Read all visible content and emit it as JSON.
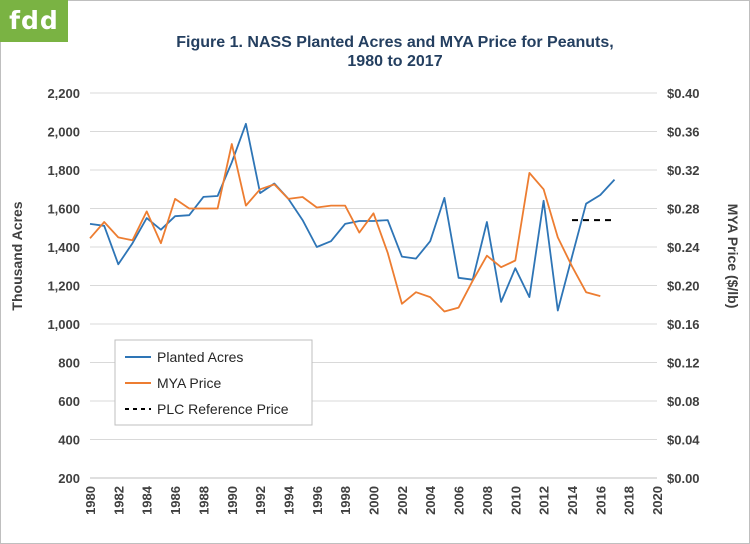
{
  "logo": {
    "text": "fdd"
  },
  "chart_data": {
    "type": "line",
    "title_line1": "Figure  1. NASS Planted Acres and MYA Price for Peanuts,",
    "title_line2": "1980 to 2017",
    "ylabel_left": "Thousand Acres",
    "ylabel_right": "MYA Price ($/lb)",
    "xlim": [
      1980,
      2020
    ],
    "ylim_left": [
      200,
      2200
    ],
    "ylim_right": [
      0.0,
      0.4
    ],
    "x_ticks": [
      1980,
      1982,
      1984,
      1986,
      1988,
      1990,
      1992,
      1994,
      1996,
      1998,
      2000,
      2002,
      2004,
      2006,
      2008,
      2010,
      2012,
      2014,
      2016,
      2018,
      2020
    ],
    "y_ticks_left": [
      "200",
      "400",
      "600",
      "800",
      "1,000",
      "1,200",
      "1,400",
      "1,600",
      "1,800",
      "2,000",
      "2,200"
    ],
    "y_ticks_right": [
      "$0.00",
      "$0.04",
      "$0.08",
      "$0.12",
      "$0.16",
      "$0.20",
      "$0.24",
      "$0.28",
      "$0.32",
      "$0.36",
      "$0.40"
    ],
    "grid": "horizontal",
    "legend_position": "lower-left",
    "series": [
      {
        "name": "Planted Acres",
        "axis": "left",
        "color": "#2e75b6",
        "style": "solid",
        "x": [
          1980,
          1981,
          1982,
          1983,
          1984,
          1985,
          1986,
          1987,
          1988,
          1989,
          1990,
          1991,
          1992,
          1993,
          1994,
          1995,
          1996,
          1997,
          1998,
          1999,
          2000,
          2001,
          2002,
          2003,
          2004,
          2005,
          2006,
          2007,
          2008,
          2009,
          2010,
          2011,
          2012,
          2013,
          2014,
          2015,
          2016,
          2017
        ],
        "values": [
          1520,
          1510,
          1310,
          1420,
          1550,
          1490,
          1560,
          1565,
          1660,
          1665,
          1840,
          2040,
          1680,
          1730,
          1650,
          1540,
          1400,
          1430,
          1520,
          1535,
          1535,
          1540,
          1350,
          1340,
          1430,
          1655,
          1240,
          1230,
          1530,
          1115,
          1290,
          1140,
          1640,
          1070,
          1350,
          1625,
          1670,
          1750
        ]
      },
      {
        "name": "MYA Price",
        "axis": "right",
        "color": "#ed7d31",
        "style": "solid",
        "x": [
          1980,
          1981,
          1982,
          1983,
          1984,
          1985,
          1986,
          1987,
          1988,
          1989,
          1990,
          1991,
          1992,
          1993,
          1994,
          1995,
          1996,
          1997,
          1998,
          1999,
          2000,
          2001,
          2002,
          2003,
          2004,
          2005,
          2006,
          2007,
          2008,
          2009,
          2010,
          2011,
          2012,
          2013,
          2014,
          2015,
          2016
        ],
        "values": [
          0.249,
          0.266,
          0.25,
          0.247,
          0.277,
          0.244,
          0.29,
          0.28,
          0.28,
          0.28,
          0.347,
          0.283,
          0.3,
          0.305,
          0.29,
          0.292,
          0.281,
          0.283,
          0.283,
          0.255,
          0.275,
          0.234,
          0.181,
          0.193,
          0.188,
          0.173,
          0.177,
          0.205,
          0.231,
          0.219,
          0.226,
          0.317,
          0.3,
          0.25,
          0.22,
          0.193,
          0.189
        ]
      },
      {
        "name": "PLC Reference Price",
        "axis": "right",
        "color": "#000000",
        "style": "dashed",
        "x": [
          2014,
          2015,
          2016,
          2017
        ],
        "values": [
          0.268,
          0.268,
          0.268,
          0.268
        ]
      }
    ]
  }
}
